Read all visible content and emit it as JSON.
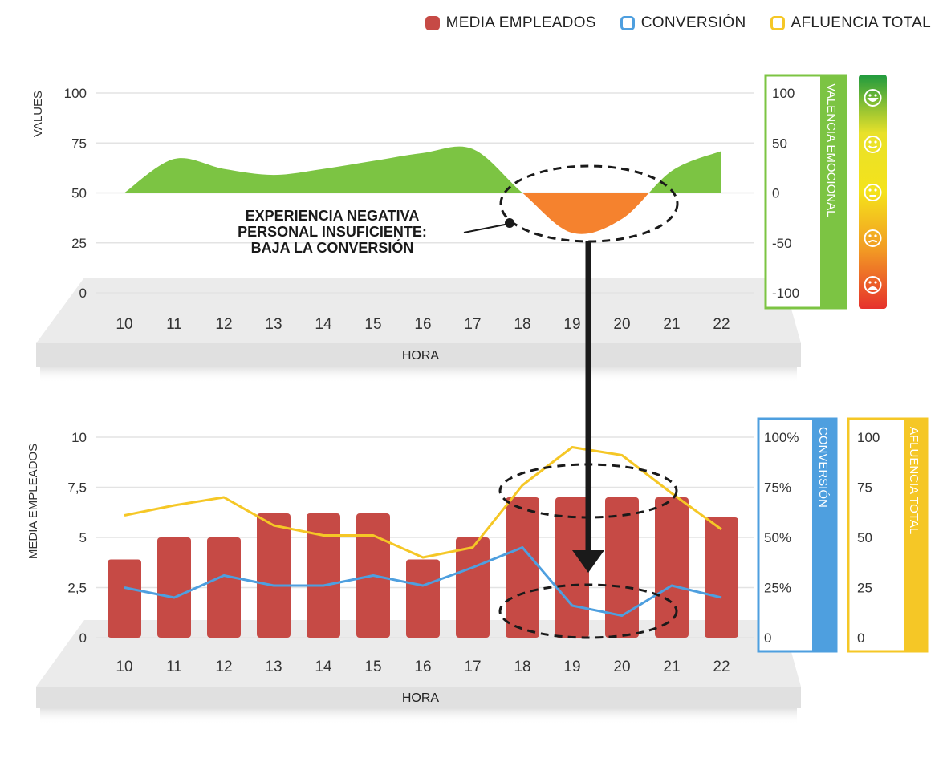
{
  "legend": [
    {
      "label": "MEDIA EMPLEADOS",
      "color": "#c64a45",
      "style": "filled"
    },
    {
      "label": "CONVERSIÓN",
      "color": "#4e9fdf",
      "style": "outline"
    },
    {
      "label": "AFLUENCIA TOTAL",
      "color": "#f5c726",
      "style": "outline"
    }
  ],
  "annotation": {
    "lines": [
      "EXPERIENCIA NEGATIVA",
      "PERSONAL INSUFICIENTE:",
      "BAJA LA CONVERSIÓN"
    ]
  },
  "emotion_scale": {
    "icons": [
      "very-happy-face-icon",
      "happy-face-icon",
      "neutral-face-icon",
      "sad-face-icon",
      "very-sad-face-icon"
    ],
    "colors": [
      "#1f9a3e",
      "#e9e12a",
      "#f4e31b",
      "#f29a24",
      "#e6312c"
    ]
  },
  "chart_data": [
    {
      "type": "area",
      "x": [
        10,
        11,
        12,
        13,
        14,
        15,
        16,
        17,
        18,
        19,
        20,
        21,
        22
      ],
      "categories": [
        "10",
        "11",
        "12",
        "13",
        "14",
        "15",
        "16",
        "17",
        "18",
        "19",
        "20",
        "21",
        "22"
      ],
      "xlabel": "HORA",
      "ylabel": "VALUES",
      "ylim": [
        0,
        100
      ],
      "yticks": [
        "0",
        "25",
        "50",
        "75",
        "100"
      ],
      "secondary_axis": {
        "label": "VALENCIA EMOCIONAL",
        "ticks": [
          "100",
          "50",
          "0",
          "-50",
          "-100"
        ],
        "ylim": [
          -100,
          100
        ],
        "color": "#7cc443"
      },
      "baseline": 50,
      "positive_color": "#7cc443",
      "negative_color": "#f5822e",
      "series": [
        {
          "values": [
            50,
            67,
            62,
            59,
            62,
            66,
            70,
            72,
            50,
            30,
            37,
            61,
            71
          ]
        }
      ]
    },
    {
      "type": "bar",
      "x": [
        10,
        11,
        12,
        13,
        14,
        15,
        16,
        17,
        18,
        19,
        20,
        21,
        22
      ],
      "categories": [
        "10",
        "11",
        "12",
        "13",
        "14",
        "15",
        "16",
        "17",
        "18",
        "19",
        "20",
        "21",
        "22"
      ],
      "xlabel": "HORA",
      "ylabel": "MEDIA EMPLEADOS",
      "ylim": [
        0,
        10
      ],
      "yticks": [
        "0",
        "2,5",
        "5",
        "7,5",
        "10"
      ],
      "conversion_axis": {
        "label": "CONVERSIÓN",
        "ticks": [
          "100%",
          "75%",
          "50%",
          "25%",
          "0"
        ],
        "color": "#4e9fdf"
      },
      "afluencia_axis": {
        "label": "AFLUENCIA TOTAL",
        "ticks": [
          "100",
          "75",
          "50",
          "25",
          "0"
        ],
        "color": "#f5c726"
      },
      "series": [
        {
          "name": "MEDIA EMPLEADOS",
          "values": [
            3.9,
            5,
            5,
            6.2,
            6.2,
            6.2,
            3.9,
            5,
            7,
            7,
            7,
            7,
            6
          ],
          "color": "#c64a45"
        },
        {
          "name": "CONVERSIÓN",
          "values": [
            25,
            20,
            31,
            26,
            26,
            31,
            26,
            35,
            45,
            16,
            11,
            26,
            20
          ],
          "color": "#4e9fdf"
        },
        {
          "name": "AFLUENCIA TOTAL",
          "values": [
            61,
            66,
            70,
            56,
            51,
            51,
            40,
            45,
            76,
            95,
            91,
            72,
            54
          ],
          "color": "#f5c726"
        }
      ]
    }
  ]
}
